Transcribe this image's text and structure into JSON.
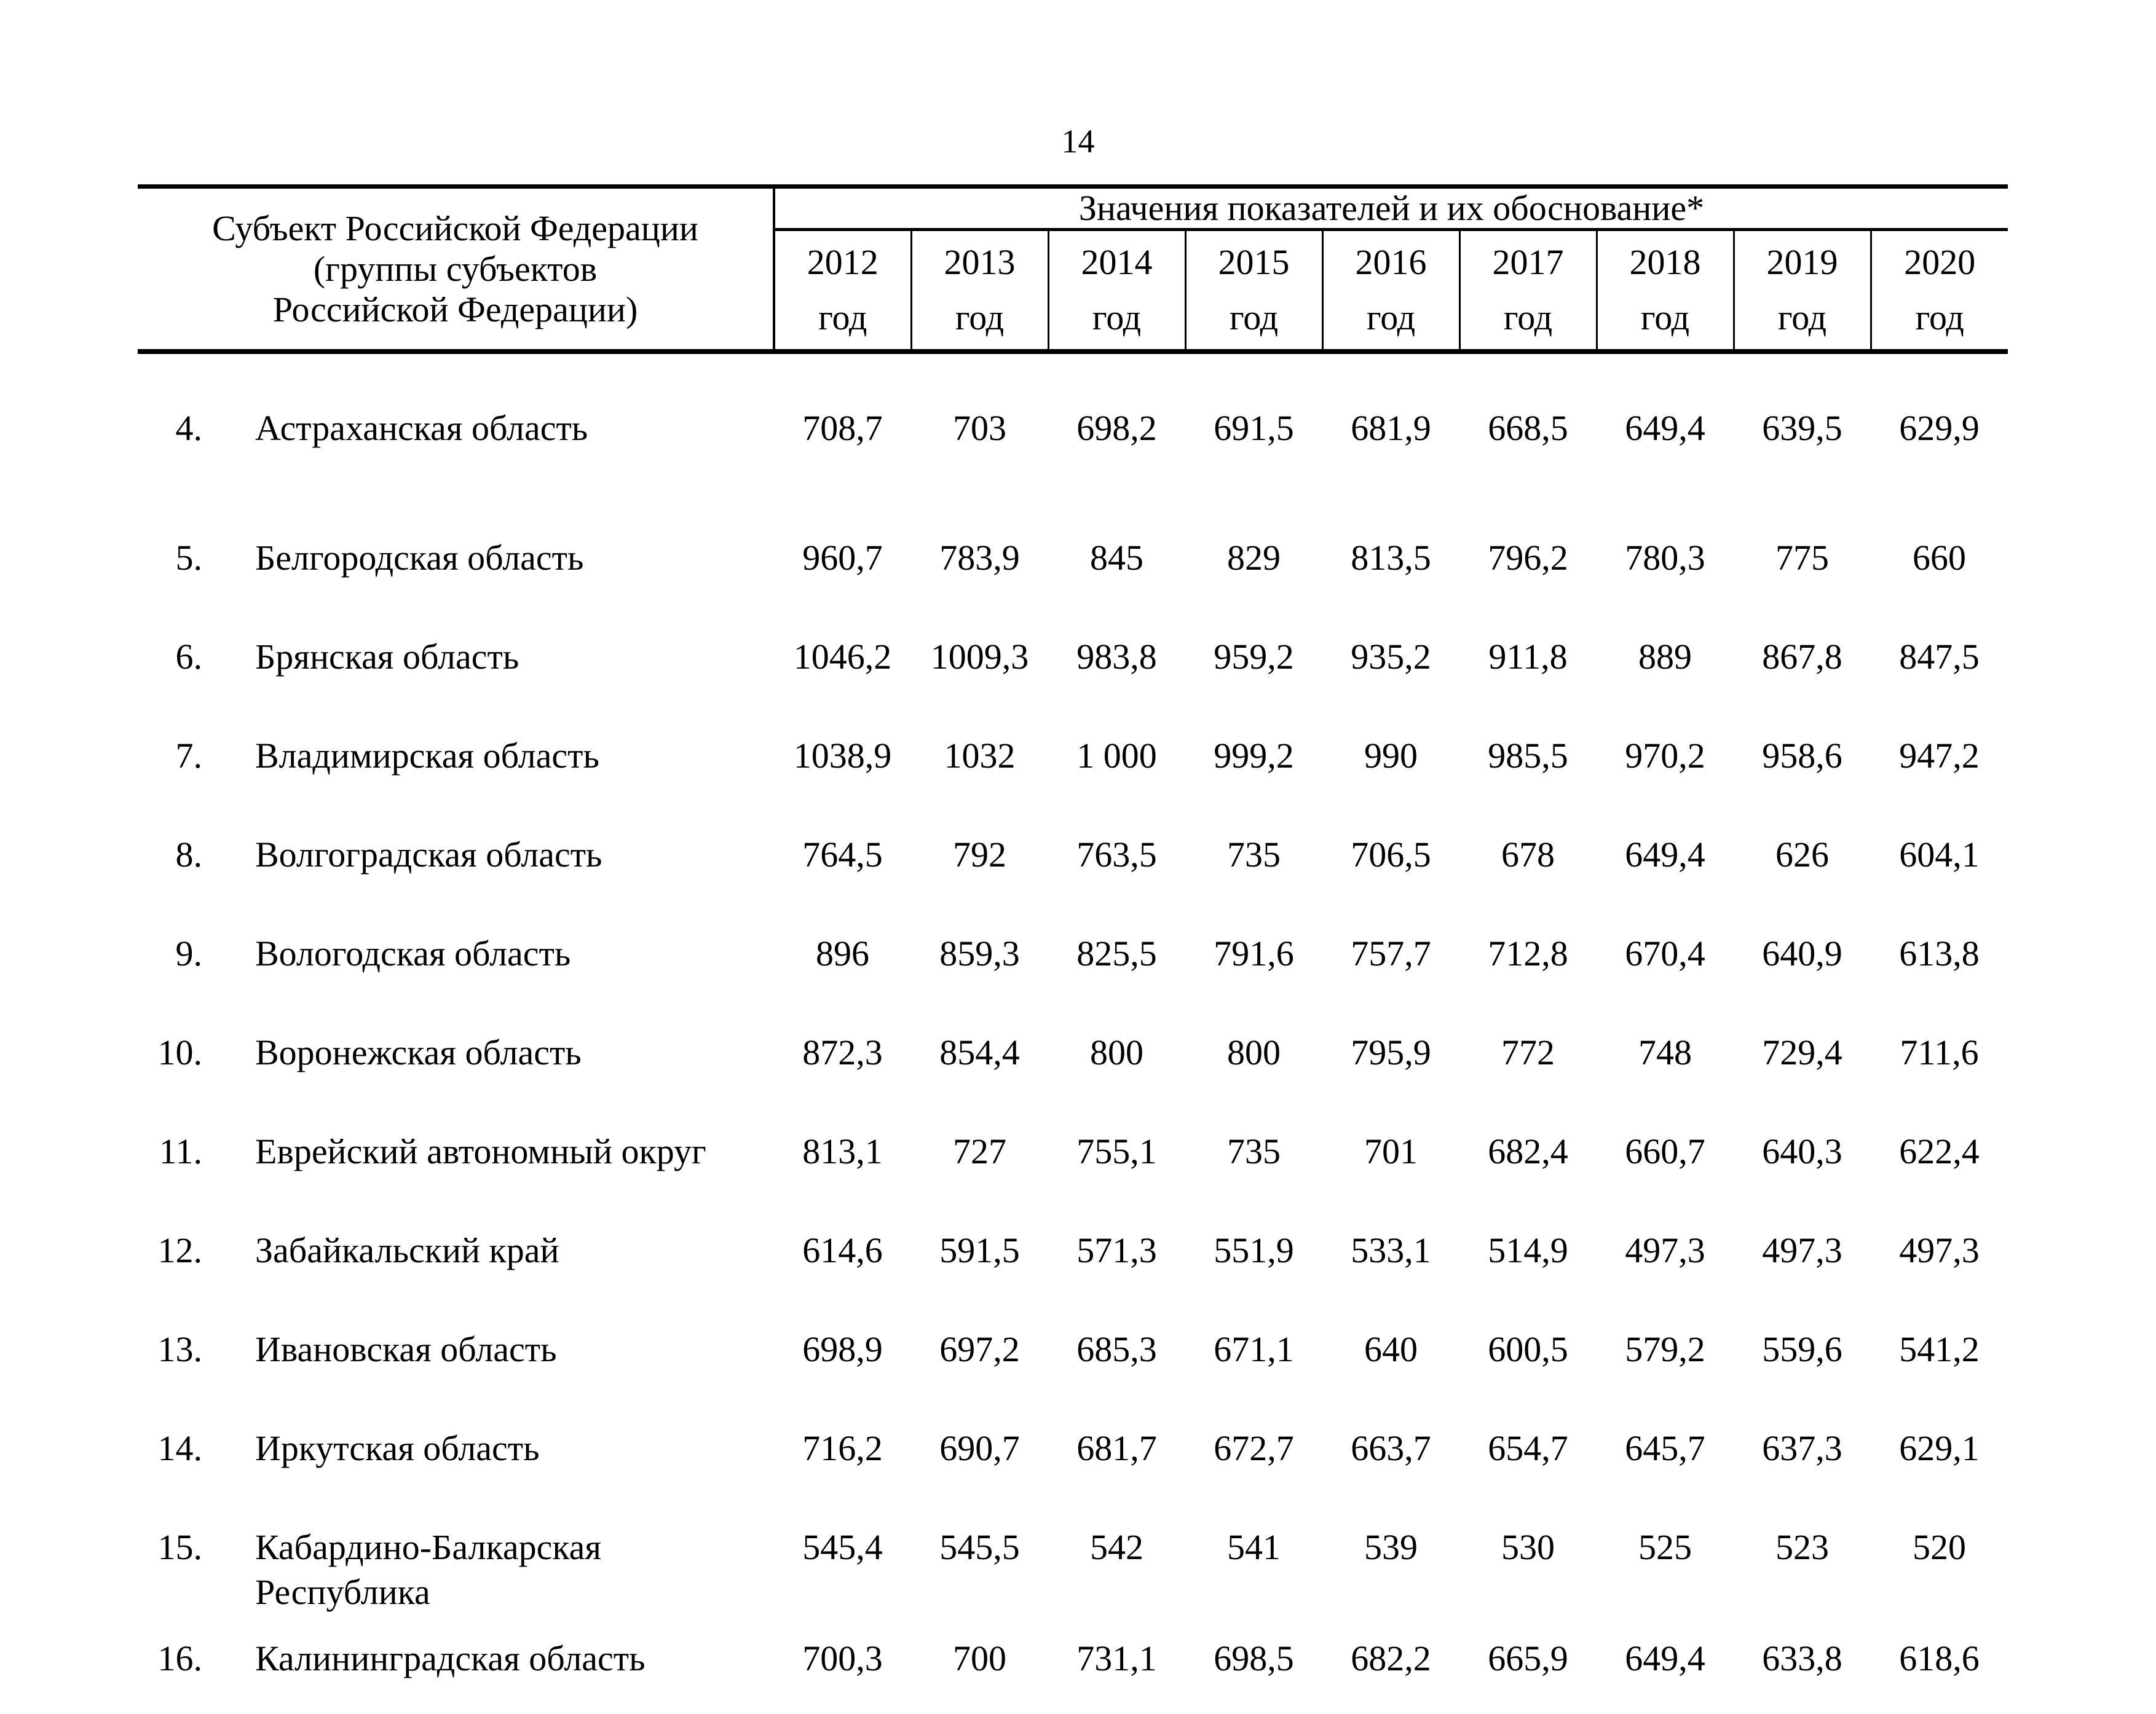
{
  "page": {
    "number": "14"
  },
  "table": {
    "header": {
      "subject_column": "Субъект Российской Федерации\n(группы субъектов\nРоссийской Федерации)",
      "values_title": "Значения показателей и их обоснование*",
      "years": [
        "2012",
        "2013",
        "2014",
        "2015",
        "2016",
        "2017",
        "2018",
        "2019",
        "2020"
      ],
      "year_suffix": "год"
    },
    "rows": [
      {
        "num": "4.",
        "region": "Астраханская область",
        "values": [
          "708,7",
          "703",
          "698,2",
          "691,5",
          "681,9",
          "668,5",
          "649,4",
          "639,5",
          "629,9"
        ]
      },
      {
        "num": "5.",
        "region": "Белгородская область",
        "values": [
          "960,7",
          "783,9",
          "845",
          "829",
          "813,5",
          "796,2",
          "780,3",
          "775",
          "660"
        ]
      },
      {
        "num": "6.",
        "region": "Брянская область",
        "values": [
          "1046,2",
          "1009,3",
          "983,8",
          "959,2",
          "935,2",
          "911,8",
          "889",
          "867,8",
          "847,5"
        ]
      },
      {
        "num": "7.",
        "region": "Владимирская область",
        "values": [
          "1038,9",
          "1032",
          "1 000",
          "999,2",
          "990",
          "985,5",
          "970,2",
          "958,6",
          "947,2"
        ]
      },
      {
        "num": "8.",
        "region": "Волгоградская область",
        "values": [
          "764,5",
          "792",
          "763,5",
          "735",
          "706,5",
          "678",
          "649,4",
          "626",
          "604,1"
        ]
      },
      {
        "num": "9.",
        "region": "Вологодская область",
        "values": [
          "896",
          "859,3",
          "825,5",
          "791,6",
          "757,7",
          "712,8",
          "670,4",
          "640,9",
          "613,8"
        ]
      },
      {
        "num": "10.",
        "region": "Воронежская область",
        "values": [
          "872,3",
          "854,4",
          "800",
          "800",
          "795,9",
          "772",
          "748",
          "729,4",
          "711,6"
        ]
      },
      {
        "num": "11.",
        "region": "Еврейский автономный округ",
        "values": [
          "813,1",
          "727",
          "755,1",
          "735",
          "701",
          "682,4",
          "660,7",
          "640,3",
          "622,4"
        ]
      },
      {
        "num": "12.",
        "region": "Забайкальский край",
        "values": [
          "614,6",
          "591,5",
          "571,3",
          "551,9",
          "533,1",
          "514,9",
          "497,3",
          "497,3",
          "497,3"
        ]
      },
      {
        "num": "13.",
        "region": "Ивановская область",
        "values": [
          "698,9",
          "697,2",
          "685,3",
          "671,1",
          "640",
          "600,5",
          "579,2",
          "559,6",
          "541,2"
        ]
      },
      {
        "num": "14.",
        "region": "Иркутская область",
        "values": [
          "716,2",
          "690,7",
          "681,7",
          "672,7",
          "663,7",
          "654,7",
          "645,7",
          "637,3",
          "629,1"
        ]
      },
      {
        "num": "15.",
        "region": "Кабардино-Балкарская\nРеспублика",
        "values": [
          "545,4",
          "545,5",
          "542",
          "541",
          "539",
          "530",
          "525",
          "523",
          "520"
        ]
      },
      {
        "num": "16.",
        "region": "Калининградская область",
        "values": [
          "700,3",
          "700",
          "731,1",
          "698,5",
          "682,2",
          "665,9",
          "649,4",
          "633,8",
          "618,6"
        ]
      }
    ]
  }
}
